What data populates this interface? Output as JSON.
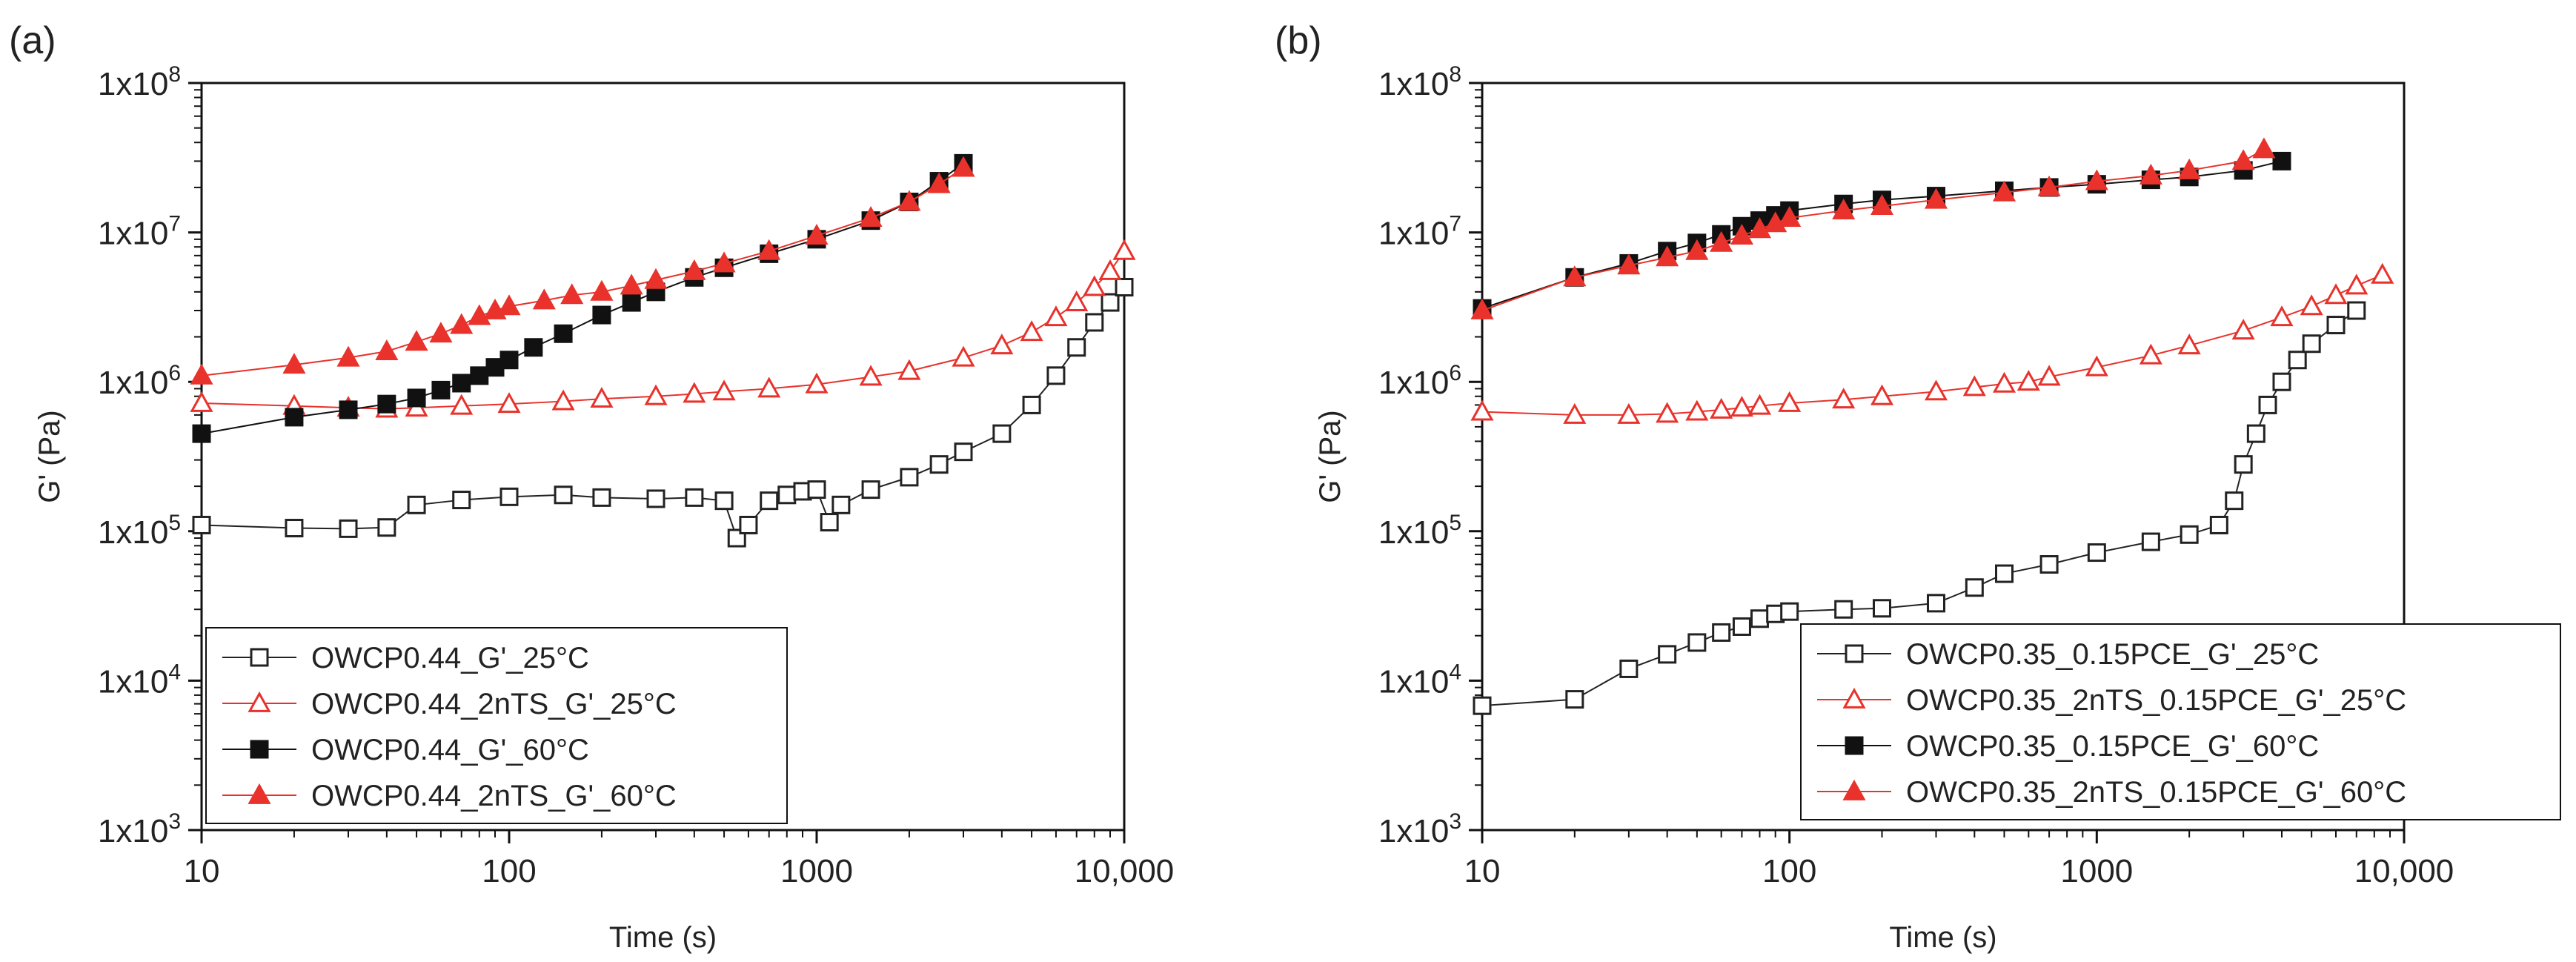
{
  "chart_data": [
    {
      "panel_label": "(a)",
      "type": "scatter",
      "xscale": "log",
      "yscale": "log",
      "xlim": [
        10,
        10000
      ],
      "ylim": [
        1000,
        100000000
      ],
      "xlabel": "Time (s)",
      "ylabel": "G' (Pa)",
      "xtick_values": [
        10,
        100,
        1000,
        10000
      ],
      "xtick_labels": [
        "10",
        "100",
        "1000",
        "10,000"
      ],
      "ytick_values": [
        1000,
        10000,
        100000,
        1000000,
        10000000,
        100000000
      ],
      "ytick_labels": [
        "1x10",
        "1x10",
        "1x10",
        "1x10",
        "1x10",
        "1x10"
      ],
      "ytick_exponents": [
        "3",
        "4",
        "5",
        "6",
        "7",
        "8"
      ],
      "legend_position": "bottom-left",
      "series": [
        {
          "name": "OWCP0.44_G'_25°C",
          "color": "#222222",
          "marker": "square-open",
          "points": [
            [
              10,
              110000
            ],
            [
              20,
              105000
            ],
            [
              30,
              104000
            ],
            [
              40,
              106000
            ],
            [
              50,
              150000
            ],
            [
              70,
              162000
            ],
            [
              100,
              170000
            ],
            [
              150,
              175000
            ],
            [
              200,
              168000
            ],
            [
              300,
              165000
            ],
            [
              400,
              168000
            ],
            [
              500,
              160000
            ],
            [
              550,
              90000
            ],
            [
              600,
              110000
            ],
            [
              700,
              160000
            ],
            [
              800,
              175000
            ],
            [
              900,
              185000
            ],
            [
              1000,
              190000
            ],
            [
              1100,
              115000
            ],
            [
              1200,
              150000
            ],
            [
              1500,
              190000
            ],
            [
              2000,
              230000
            ],
            [
              2500,
              280000
            ],
            [
              3000,
              340000
            ],
            [
              4000,
              450000
            ],
            [
              5000,
              700000
            ],
            [
              6000,
              1100000
            ],
            [
              7000,
              1700000
            ],
            [
              8000,
              2500000
            ],
            [
              9000,
              3400000
            ],
            [
              10000,
              4300000
            ]
          ]
        },
        {
          "name": "OWCP0.44_2nTS_G'_25°C",
          "color": "#e8322b",
          "marker": "triangle-open",
          "points": [
            [
              10,
              720000
            ],
            [
              20,
              690000
            ],
            [
              30,
              670000
            ],
            [
              40,
              660000
            ],
            [
              50,
              670000
            ],
            [
              70,
              690000
            ],
            [
              100,
              710000
            ],
            [
              150,
              740000
            ],
            [
              200,
              770000
            ],
            [
              300,
              800000
            ],
            [
              400,
              830000
            ],
            [
              500,
              860000
            ],
            [
              700,
              900000
            ],
            [
              1000,
              960000
            ],
            [
              1500,
              1080000
            ],
            [
              2000,
              1180000
            ],
            [
              3000,
              1450000
            ],
            [
              4000,
              1750000
            ],
            [
              5000,
              2150000
            ],
            [
              6000,
              2700000
            ],
            [
              7000,
              3400000
            ],
            [
              8000,
              4300000
            ],
            [
              9000,
              5500000
            ],
            [
              10000,
              7500000
            ]
          ]
        },
        {
          "name": "OWCP0.44_G'_60°C",
          "color": "#111111",
          "marker": "square-filled",
          "points": [
            [
              10,
              450000
            ],
            [
              20,
              580000
            ],
            [
              30,
              650000
            ],
            [
              40,
              710000
            ],
            [
              50,
              780000
            ],
            [
              60,
              880000
            ],
            [
              70,
              980000
            ],
            [
              80,
              1100000
            ],
            [
              90,
              1250000
            ],
            [
              100,
              1400000
            ],
            [
              120,
              1700000
            ],
            [
              150,
              2100000
            ],
            [
              200,
              2800000
            ],
            [
              250,
              3400000
            ],
            [
              300,
              4000000
            ],
            [
              400,
              5000000
            ],
            [
              500,
              5800000
            ],
            [
              700,
              7200000
            ],
            [
              1000,
              9000000
            ],
            [
              1500,
              12000000
            ],
            [
              2000,
              16000000
            ],
            [
              2500,
              22000000
            ],
            [
              3000,
              29000000
            ]
          ]
        },
        {
          "name": "OWCP0.44_2nTS_G'_60°C",
          "color": "#e8322b",
          "marker": "triangle-filled",
          "points": [
            [
              10,
              1100000
            ],
            [
              20,
              1300000
            ],
            [
              30,
              1450000
            ],
            [
              40,
              1600000
            ],
            [
              50,
              1850000
            ],
            [
              60,
              2100000
            ],
            [
              70,
              2400000
            ],
            [
              80,
              2750000
            ],
            [
              90,
              3000000
            ],
            [
              100,
              3200000
            ],
            [
              130,
              3500000
            ],
            [
              160,
              3800000
            ],
            [
              200,
              4000000
            ],
            [
              250,
              4400000
            ],
            [
              300,
              4800000
            ],
            [
              400,
              5500000
            ],
            [
              500,
              6200000
            ],
            [
              700,
              7500000
            ],
            [
              1000,
              9500000
            ],
            [
              1500,
              12500000
            ],
            [
              2000,
              16000000
            ],
            [
              2500,
              21000000
            ],
            [
              3000,
              27000000
            ]
          ]
        }
      ]
    },
    {
      "panel_label": "(b)",
      "type": "scatter",
      "xscale": "log",
      "yscale": "log",
      "xlim": [
        10,
        10000
      ],
      "ylim": [
        1000,
        100000000
      ],
      "xlabel": "Time (s)",
      "ylabel": "G' (Pa)",
      "xtick_values": [
        10,
        100,
        1000,
        10000
      ],
      "xtick_labels": [
        "10",
        "100",
        "1000",
        "10,000"
      ],
      "ytick_values": [
        1000,
        10000,
        100000,
        1000000,
        10000000,
        100000000
      ],
      "ytick_labels": [
        "1x10",
        "1x10",
        "1x10",
        "1x10",
        "1x10",
        "1x10"
      ],
      "ytick_exponents": [
        "3",
        "4",
        "5",
        "6",
        "7",
        "8"
      ],
      "legend_position": "bottom-right",
      "series": [
        {
          "name": "OWCP0.35_0.15PCE_G'_25°C",
          "color": "#222222",
          "marker": "square-open",
          "points": [
            [
              10,
              6800
            ],
            [
              20,
              7500
            ],
            [
              30,
              12000
            ],
            [
              40,
              15000
            ],
            [
              50,
              18000
            ],
            [
              60,
              21000
            ],
            [
              70,
              23000
            ],
            [
              80,
              26000
            ],
            [
              90,
              28000
            ],
            [
              100,
              29000
            ],
            [
              150,
              30000
            ],
            [
              200,
              30500
            ],
            [
              300,
              33000
            ],
            [
              400,
              42000
            ],
            [
              500,
              52000
            ],
            [
              700,
              60000
            ],
            [
              1000,
              72000
            ],
            [
              1500,
              85000
            ],
            [
              2000,
              95000
            ],
            [
              2500,
              110000
            ],
            [
              2800,
              160000
            ],
            [
              3000,
              280000
            ],
            [
              3300,
              450000
            ],
            [
              3600,
              700000
            ],
            [
              4000,
              1000000
            ],
            [
              4500,
              1400000
            ],
            [
              5000,
              1800000
            ],
            [
              6000,
              2400000
            ],
            [
              7000,
              3000000
            ]
          ]
        },
        {
          "name": "OWCP0.35_2nTS_0.15PCE_G'_25°C",
          "color": "#e8322b",
          "marker": "triangle-open",
          "points": [
            [
              10,
              630000
            ],
            [
              20,
              600000
            ],
            [
              30,
              600000
            ],
            [
              40,
              610000
            ],
            [
              50,
              630000
            ],
            [
              60,
              650000
            ],
            [
              70,
              670000
            ],
            [
              80,
              690000
            ],
            [
              100,
              720000
            ],
            [
              150,
              760000
            ],
            [
              200,
              800000
            ],
            [
              300,
              860000
            ],
            [
              400,
              920000
            ],
            [
              500,
              970000
            ],
            [
              600,
              1000000
            ],
            [
              700,
              1080000
            ],
            [
              1000,
              1250000
            ],
            [
              1500,
              1500000
            ],
            [
              2000,
              1750000
            ],
            [
              3000,
              2200000
            ],
            [
              4000,
              2700000
            ],
            [
              5000,
              3200000
            ],
            [
              6000,
              3800000
            ],
            [
              7000,
              4400000
            ],
            [
              8500,
              5200000
            ]
          ]
        },
        {
          "name": "OWCP0.35_0.15PCE_G'_60°C",
          "color": "#111111",
          "marker": "square-filled",
          "points": [
            [
              10,
              3100000
            ],
            [
              20,
              5000000
            ],
            [
              30,
              6200000
            ],
            [
              40,
              7500000
            ],
            [
              50,
              8500000
            ],
            [
              60,
              9700000
            ],
            [
              70,
              11000000
            ],
            [
              80,
              12000000
            ],
            [
              90,
              13000000
            ],
            [
              100,
              14000000
            ],
            [
              150,
              15500000
            ],
            [
              200,
              16500000
            ],
            [
              300,
              17500000
            ],
            [
              500,
              19000000
            ],
            [
              700,
              20000000
            ],
            [
              1000,
              21000000
            ],
            [
              1500,
              22500000
            ],
            [
              2000,
              23500000
            ],
            [
              3000,
              26000000
            ],
            [
              4000,
              30000000
            ]
          ]
        },
        {
          "name": "OWCP0.35_2nTS_0.15PCE_G'_60°C",
          "color": "#e8322b",
          "marker": "triangle-filled",
          "points": [
            [
              10,
              3000000
            ],
            [
              20,
              5000000
            ],
            [
              30,
              6000000
            ],
            [
              40,
              6800000
            ],
            [
              50,
              7500000
            ],
            [
              60,
              8500000
            ],
            [
              70,
              9500000
            ],
            [
              80,
              10500000
            ],
            [
              90,
              11500000
            ],
            [
              100,
              12500000
            ],
            [
              150,
              14000000
            ],
            [
              200,
              15000000
            ],
            [
              300,
              16500000
            ],
            [
              500,
              18500000
            ],
            [
              700,
              20000000
            ],
            [
              1000,
              22000000
            ],
            [
              1500,
              24000000
            ],
            [
              2000,
              26000000
            ],
            [
              3000,
              30000000
            ],
            [
              3500,
              36000000
            ]
          ]
        }
      ]
    }
  ]
}
